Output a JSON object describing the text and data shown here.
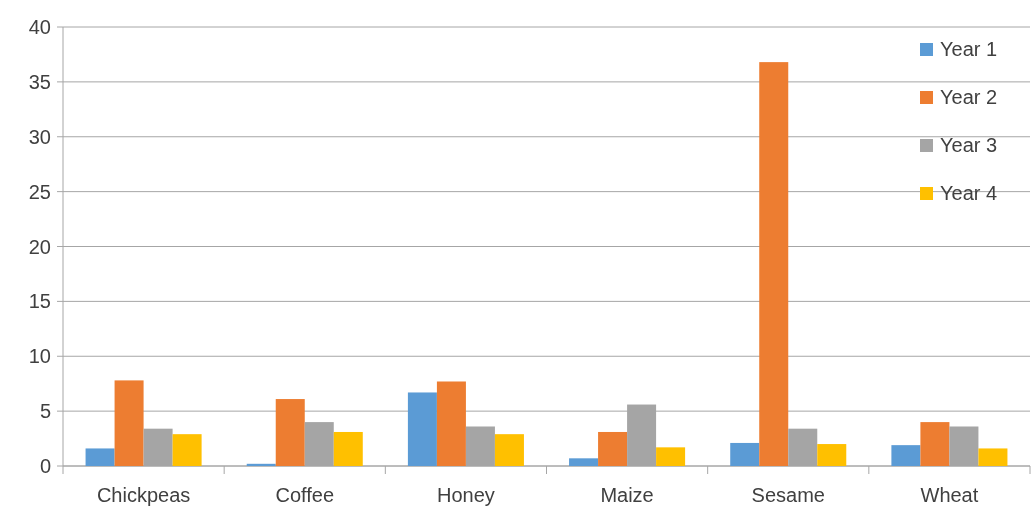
{
  "chart_data": {
    "type": "bar",
    "categories": [
      "Chickpeas",
      "Coffee",
      "Honey",
      "Maize",
      "Sesame",
      "Wheat"
    ],
    "series": [
      {
        "name": "Year 1",
        "color": "#5b9bd5",
        "values": [
          1.6,
          0.2,
          6.7,
          0.7,
          2.1,
          1.9
        ]
      },
      {
        "name": "Year 2",
        "color": "#ed7d31",
        "values": [
          7.8,
          6.1,
          7.7,
          3.1,
          36.8,
          4.0
        ]
      },
      {
        "name": "Year 3",
        "color": "#a5a5a5",
        "values": [
          3.4,
          4.0,
          3.6,
          5.6,
          3.4,
          3.6
        ]
      },
      {
        "name": "Year 4",
        "color": "#ffc000",
        "values": [
          2.9,
          3.1,
          2.9,
          1.7,
          2.0,
          1.6
        ]
      }
    ],
    "ylim": [
      0,
      40
    ],
    "yticks": [
      0,
      5,
      10,
      15,
      20,
      25,
      30,
      35,
      40
    ],
    "grid": "y",
    "legend": "top right"
  }
}
